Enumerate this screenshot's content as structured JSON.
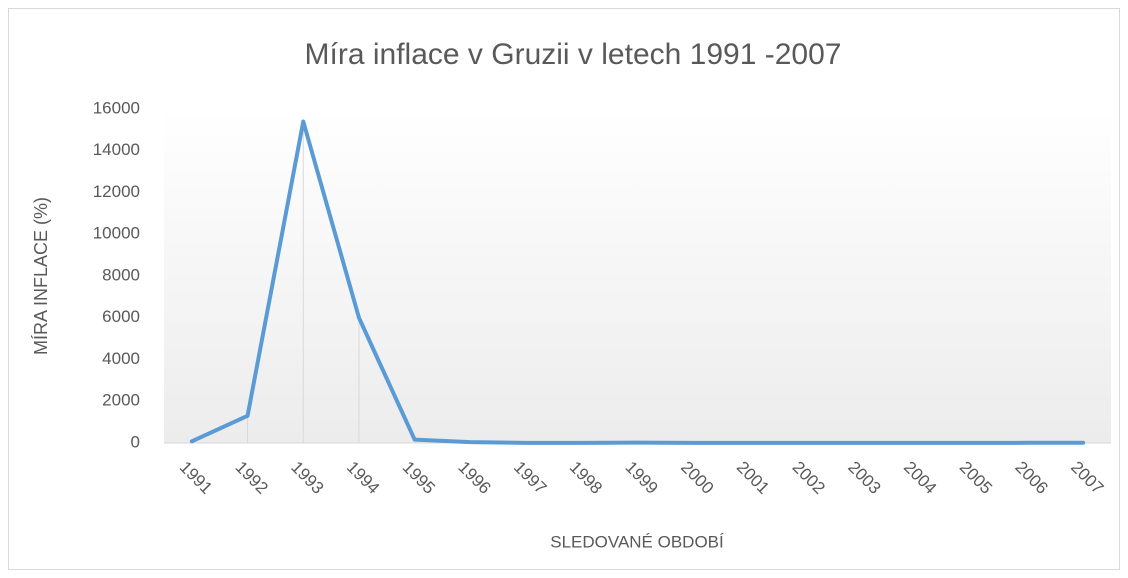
{
  "chart_data": {
    "type": "line",
    "title": "Míra inflace v Gruzii v letech 1991 -2007",
    "x_label": "SLEDOVANÉ OBDOBÍ",
    "y_label": "MÍRA INFLACE (%)",
    "categories": [
      "1991",
      "1992",
      "1993",
      "1994",
      "1995",
      "1996",
      "1997",
      "1998",
      "1999",
      "2000",
      "2001",
      "2002",
      "2003",
      "2004",
      "2005",
      "2006",
      "2007"
    ],
    "series": [
      {
        "name": "Míra inflace",
        "color": "#5b9bd5",
        "values": [
          80,
          1300,
          15400,
          6000,
          160,
          40,
          7,
          4,
          20,
          4,
          5,
          6,
          5,
          6,
          6,
          9,
          9
        ]
      }
    ],
    "ylim": [
      0,
      16000
    ],
    "yticks": [
      0,
      2000,
      4000,
      6000,
      8000,
      10000,
      12000,
      14000,
      16000
    ],
    "drop_lines": true
  }
}
